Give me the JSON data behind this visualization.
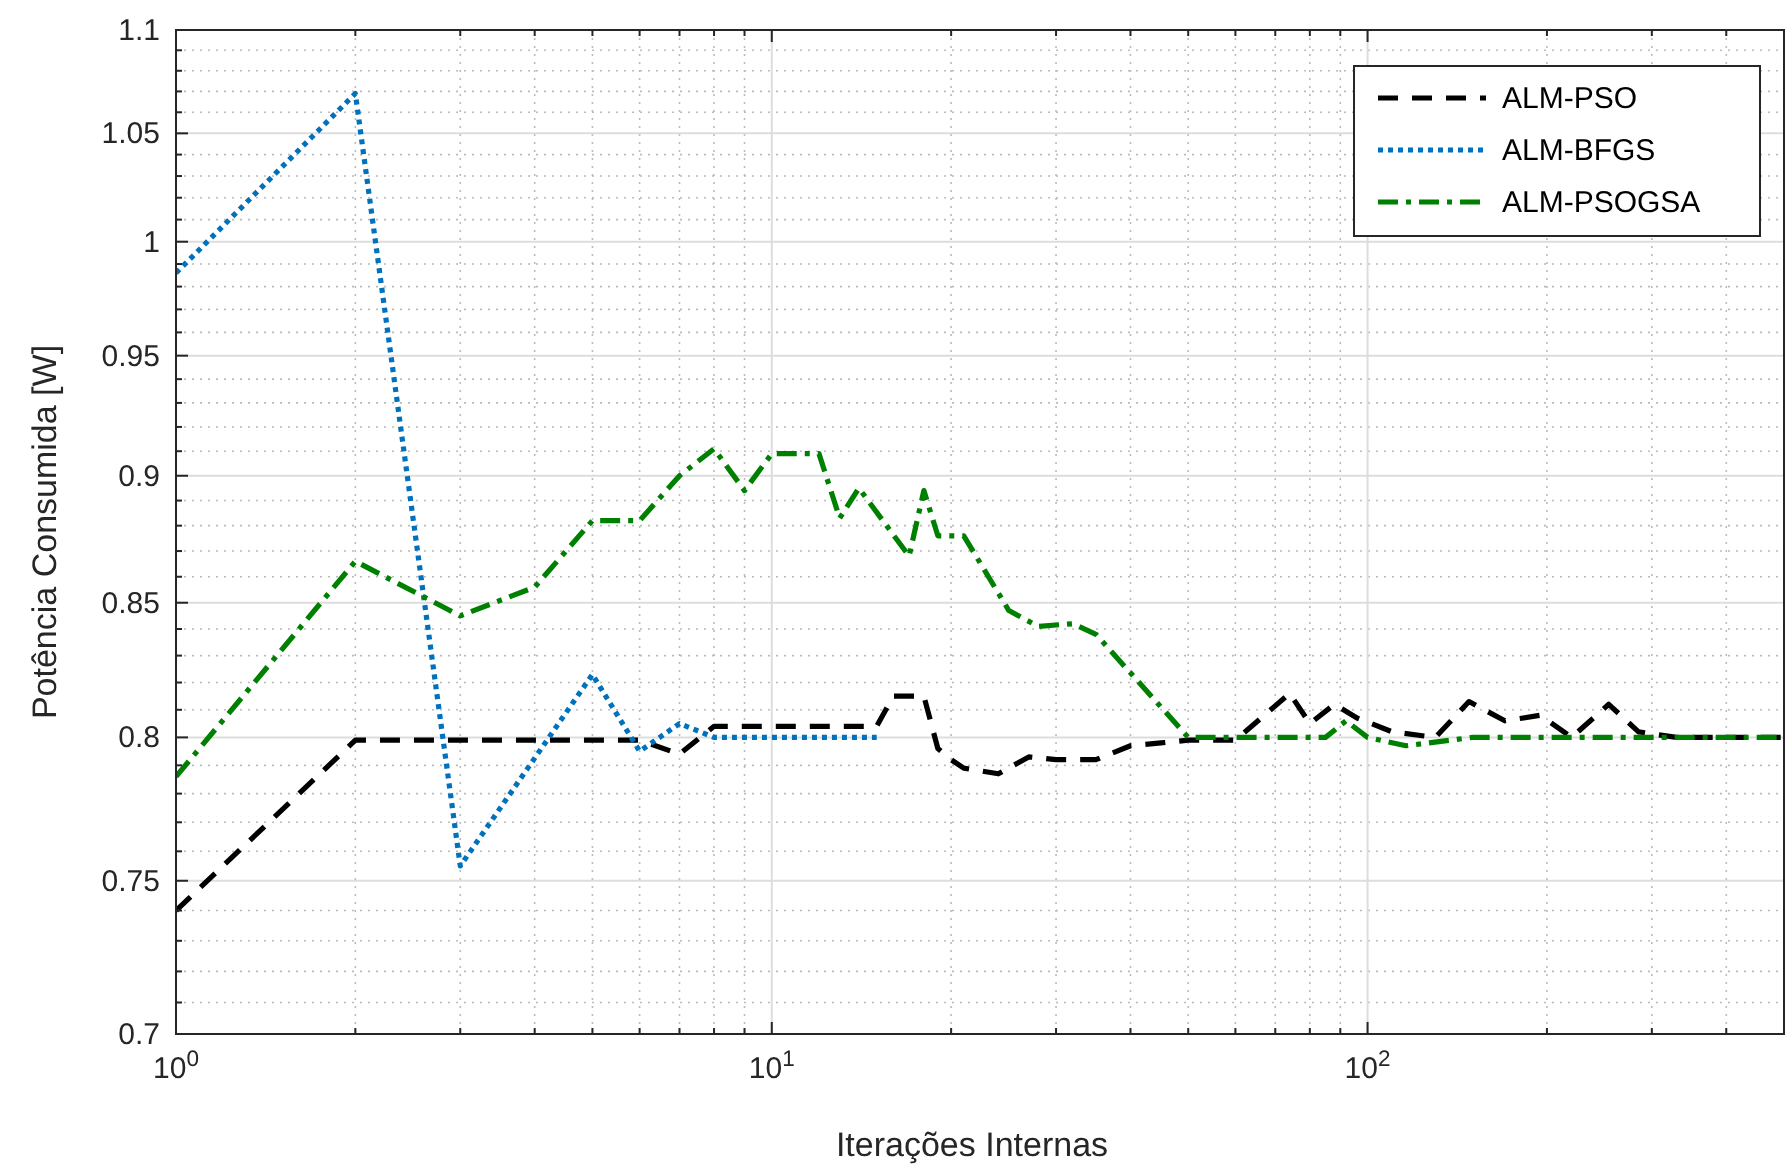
{
  "chart_data": {
    "type": "line",
    "xlabel": "Iterações Internas",
    "ylabel": "Potência Consumida [W]",
    "log": "xy",
    "grid": true,
    "legend": "top right",
    "xlim": [
      1,
      500
    ],
    "ylim": [
      0.7,
      1.1
    ],
    "xticks": [
      {
        "value": 1,
        "label": "10$^{0}$"
      },
      {
        "value": 10,
        "label": "10$^{1}$"
      },
      {
        "value": 100,
        "label": "10$^{2}$"
      }
    ],
    "yticks": [
      0.7,
      0.75,
      0.8,
      0.85,
      0.9,
      0.95,
      1,
      1.05,
      1.1
    ],
    "series": [
      {
        "name": "ALM-PSO",
        "color": "#000000",
        "line_style": "dashed",
        "x": [
          1,
          2,
          3,
          4,
          5,
          6,
          7,
          8,
          9,
          10,
          12,
          14,
          15,
          16,
          18,
          19,
          20,
          21,
          24,
          27,
          30,
          35,
          40,
          45,
          50,
          60,
          74,
          80,
          88,
          96,
          110,
          130,
          148,
          170,
          195,
          220,
          254,
          285,
          330,
          400,
          500
        ],
        "values": [
          0.74,
          0.799,
          0.799,
          0.799,
          0.799,
          0.799,
          0.794,
          0.804,
          0.804,
          0.804,
          0.804,
          0.804,
          0.804,
          0.815,
          0.815,
          0.796,
          0.792,
          0.789,
          0.787,
          0.793,
          0.792,
          0.792,
          0.797,
          0.798,
          0.799,
          0.799,
          0.816,
          0.805,
          0.812,
          0.807,
          0.802,
          0.8,
          0.813,
          0.806,
          0.808,
          0.8,
          0.812,
          0.802,
          0.8,
          0.8,
          0.8
        ]
      },
      {
        "name": "ALM-BFGS",
        "color": "#0072bd",
        "line_style": "dotted",
        "x": [
          1,
          2,
          3,
          5,
          6,
          7,
          8,
          10,
          12,
          15
        ],
        "values": [
          0.986,
          1.069,
          0.755,
          0.823,
          0.795,
          0.805,
          0.8,
          0.8,
          0.8,
          0.8
        ]
      },
      {
        "name": "ALM-PSOGSA",
        "color": "#008000",
        "line_style": "dashdot",
        "x": [
          1,
          2,
          3,
          4,
          5,
          6,
          7,
          8,
          9,
          10,
          12,
          13,
          14,
          17,
          18,
          19,
          21,
          25,
          28,
          32,
          35,
          50,
          70,
          85,
          92,
          100,
          116,
          150,
          200,
          300,
          500
        ],
        "values": [
          0.786,
          0.866,
          0.845,
          0.856,
          0.882,
          0.882,
          0.9,
          0.911,
          0.894,
          0.909,
          0.909,
          0.883,
          0.895,
          0.868,
          0.894,
          0.876,
          0.876,
          0.847,
          0.841,
          0.842,
          0.838,
          0.8,
          0.8,
          0.8,
          0.806,
          0.8,
          0.797,
          0.8,
          0.8,
          0.8,
          0.8
        ]
      }
    ]
  }
}
